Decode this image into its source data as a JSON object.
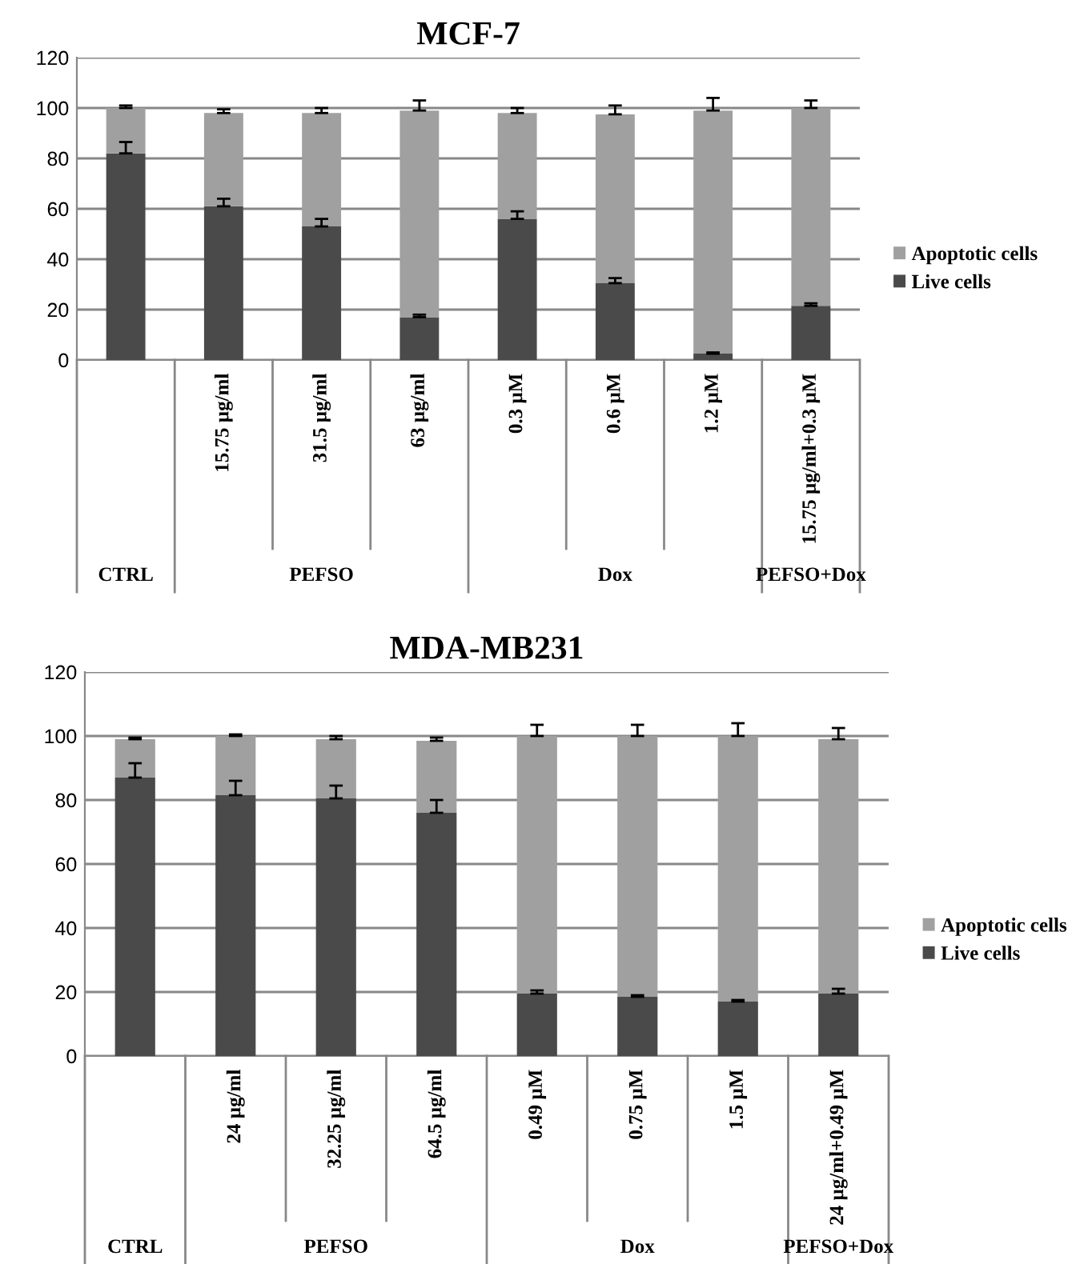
{
  "chart_data": [
    {
      "type": "bar",
      "title": "MCF-7",
      "stacked": true,
      "categories": [
        null,
        "15.75 µg/ml",
        "31.5 µg/ml",
        "63 µg/ml",
        "0.3 µM",
        "0.6 µM",
        "1.2 µM",
        "15.75 µg/ml+0.3 µM"
      ],
      "series": [
        {
          "name": "Live cells",
          "color": "#4a4a4a",
          "values": [
            82,
            61,
            53,
            17,
            56,
            30.5,
            2.5,
            21.5
          ],
          "errors": [
            4.5,
            3,
            3,
            1,
            3,
            2,
            0.5,
            1
          ]
        },
        {
          "name": "Apoptotic cells",
          "color": "#a0a0a0",
          "values": [
            18,
            37,
            45,
            82,
            42,
            67,
            96.5,
            78.5
          ],
          "errors": [
            1,
            1.5,
            2,
            4,
            2,
            3.5,
            5,
            3
          ]
        }
      ],
      "ylim": [
        0,
        120
      ],
      "yticks": [
        0,
        20,
        40,
        60,
        80,
        100,
        120
      ],
      "grid": "y",
      "legend": "right",
      "annotations": [
        "CTRL",
        "PEFSO",
        "Dox",
        "PEFSO+Dox"
      ]
    },
    {
      "type": "bar",
      "title": "MDA-MB231",
      "stacked": true,
      "categories": [
        null,
        "24 µg/ml",
        "32.25 µg/ml",
        "64.5 µg/ml",
        "0.49 µM",
        "0.75 µM",
        "1.5 µM",
        "24 µg/ml+0.49 µM"
      ],
      "series": [
        {
          "name": "Live cells",
          "color": "#4a4a4a",
          "values": [
            87,
            81.5,
            80.5,
            76,
            19.5,
            18.5,
            17,
            19.5
          ],
          "errors": [
            4.5,
            4.5,
            4,
            4,
            1,
            0.5,
            0.5,
            1.5
          ]
        },
        {
          "name": "Apoptotic cells",
          "color": "#a0a0a0",
          "values": [
            12,
            18.5,
            18.5,
            22.5,
            80.5,
            81.5,
            83,
            79.5
          ],
          "errors": [
            0.5,
            0.5,
            1,
            1,
            3.5,
            3.5,
            4,
            3.5
          ]
        }
      ],
      "ylim": [
        0,
        120
      ],
      "yticks": [
        0,
        20,
        40,
        60,
        80,
        100,
        120
      ],
      "grid": "y",
      "legend": "right",
      "annotations": [
        "CTRL",
        "PEFSO",
        "Dox",
        "PEFSO+Dox"
      ]
    }
  ]
}
